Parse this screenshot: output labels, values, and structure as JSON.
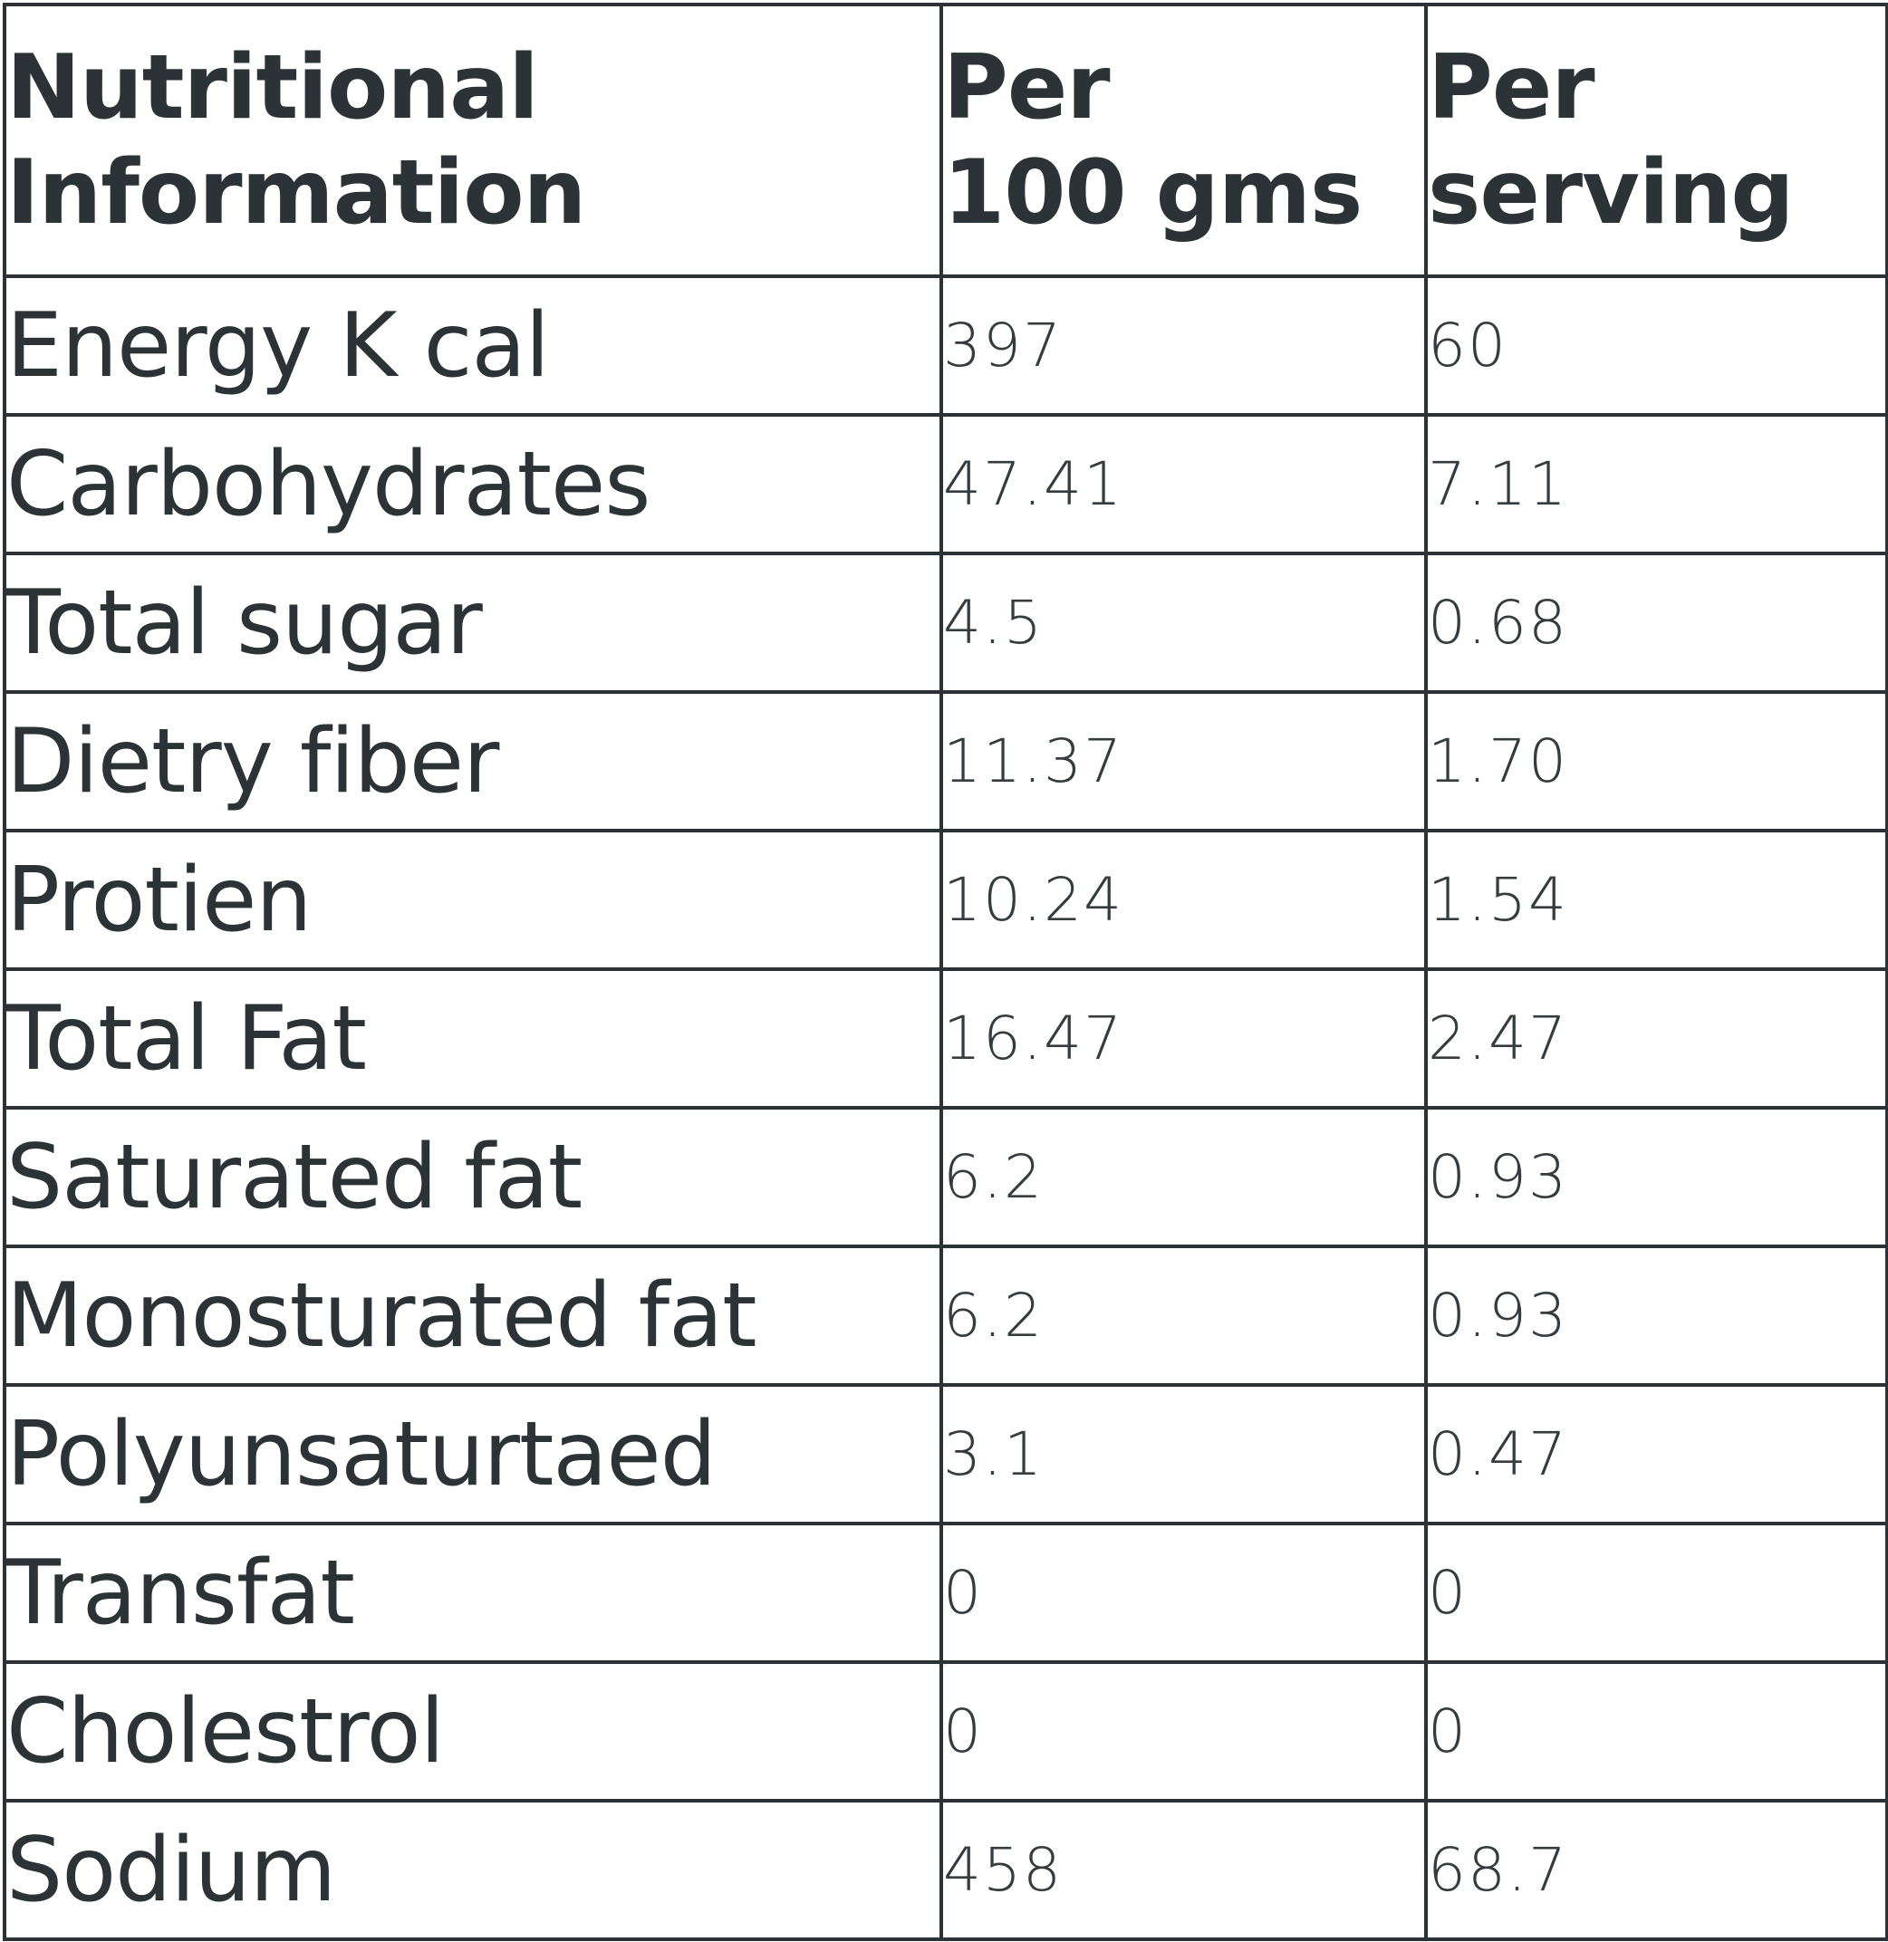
{
  "header": {
    "col1_line1": "Nutritional",
    "col1_line2": "Information",
    "col2_line1": "Per",
    "col2_line2": "100 gms",
    "col3_line1": "Per",
    "col3_line2": "serving"
  },
  "rows": [
    {
      "label": "Energy K cal",
      "per_100g": "397",
      "per_serving": "60"
    },
    {
      "label": "Carbohydrates",
      "per_100g": "47.41",
      "per_serving": "7.11"
    },
    {
      "label": "Total sugar",
      "per_100g": "4.5",
      "per_serving": "0.68"
    },
    {
      "label": "Dietry fiber",
      "per_100g": "11.37",
      "per_serving": "1.70"
    },
    {
      "label": "Protien",
      "per_100g": "10.24",
      "per_serving": "1.54"
    },
    {
      "label": "Total Fat",
      "per_100g": "16.47",
      "per_serving": "2.47"
    },
    {
      "label": "Saturated fat",
      "per_100g": "6.2",
      "per_serving": "0.93"
    },
    {
      "label": "Monosturated fat",
      "per_100g": "6.2",
      "per_serving": "0.93"
    },
    {
      "label": "Polyunsaturtaed",
      "per_100g": "3.1",
      "per_serving": "0.47"
    },
    {
      "label": "Transfat",
      "per_100g": "0",
      "per_serving": "0"
    },
    {
      "label": "Cholestrol",
      "per_100g": "0",
      "per_serving": "0"
    },
    {
      "label": "Sodium",
      "per_100g": "458",
      "per_serving": "68.7"
    }
  ],
  "colors": {
    "text": "#2b3336",
    "border": "#2b3336",
    "background": "#ffffff"
  }
}
